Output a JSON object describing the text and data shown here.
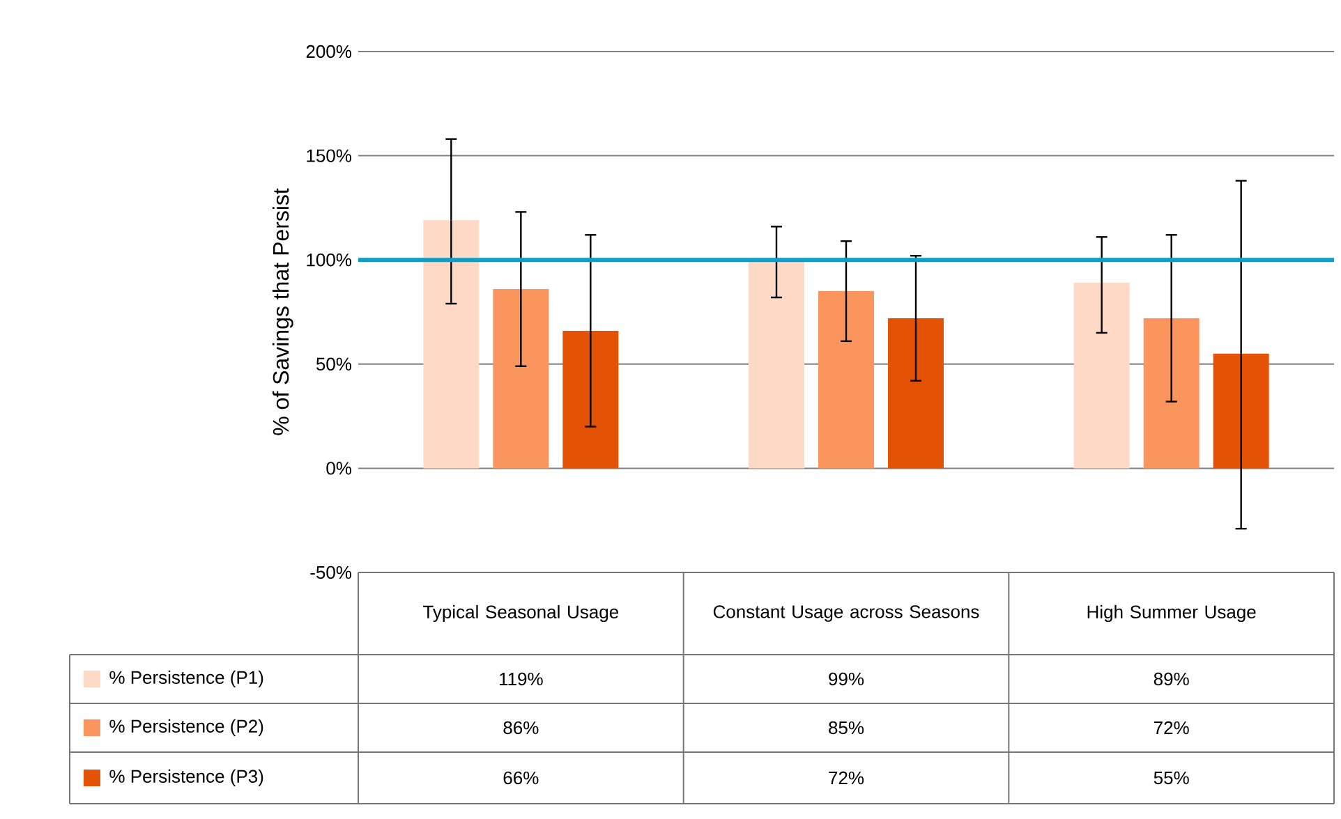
{
  "chart_data": {
    "type": "bar",
    "ylabel": "% of Savings that Persist",
    "categories": [
      "Typical Seasonal Usage",
      "Constant Usage across Seasons",
      "High Summer Usage"
    ],
    "series": [
      {
        "name": "% Persistence (P1)",
        "color": "#fdd9c6",
        "values": [
          119,
          99,
          89
        ],
        "value_labels": [
          "119%",
          "99%",
          "89%"
        ],
        "errors": [
          [
            79,
            158
          ],
          [
            82,
            116
          ],
          [
            65,
            111
          ]
        ]
      },
      {
        "name": "% Persistence (P2)",
        "color": "#fb955e",
        "values": [
          86,
          85,
          72
        ],
        "value_labels": [
          "86%",
          "85%",
          "72%"
        ],
        "errors": [
          [
            49,
            123
          ],
          [
            61,
            109
          ],
          [
            32,
            112
          ]
        ]
      },
      {
        "name": "% Persistence (P3)",
        "color": "#e35205",
        "values": [
          66,
          72,
          55
        ],
        "value_labels": [
          "66%",
          "72%",
          "55%"
        ],
        "errors": [
          [
            20,
            112
          ],
          [
            42,
            102
          ],
          [
            -29,
            138
          ]
        ]
      }
    ],
    "ylim": [
      -50,
      200
    ],
    "yticks": [
      {
        "value": -50,
        "label": "-50%"
      },
      {
        "value": 0,
        "label": "0%"
      },
      {
        "value": 50,
        "label": "50%"
      },
      {
        "value": 100,
        "label": "100%"
      },
      {
        "value": 150,
        "label": "150%"
      },
      {
        "value": 200,
        "label": "200%"
      }
    ],
    "ref_lines": [
      {
        "axis": "y",
        "value": 100,
        "color": "#0a9fc9"
      }
    ],
    "grid": "y",
    "legend": "bottom"
  }
}
